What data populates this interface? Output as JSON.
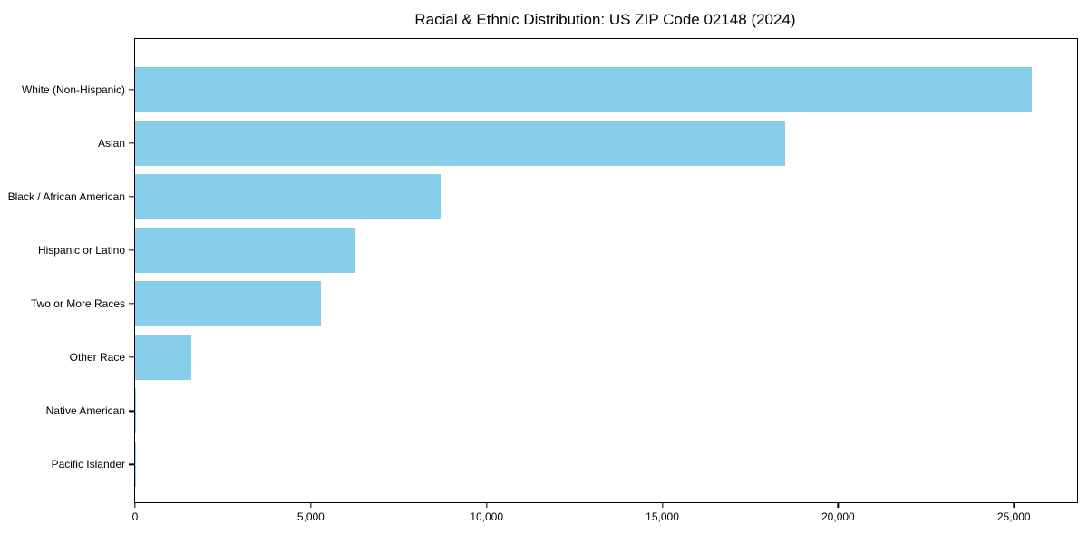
{
  "chart_data": {
    "type": "bar",
    "orientation": "horizontal",
    "title": "Racial & Ethnic Distribution: US ZIP Code 02148 (2024)",
    "categories": [
      "White (Non-Hispanic)",
      "Asian",
      "Black / African American",
      "Hispanic or Latino",
      "Two or More Races",
      "Other Race",
      "Native American",
      "Pacific Islander"
    ],
    "values": [
      25500,
      18500,
      8700,
      6250,
      5300,
      1600,
      30,
      10
    ],
    "xlabel": "",
    "ylabel": "",
    "xlim": [
      0,
      26800
    ],
    "x_ticks": [
      0,
      5000,
      10000,
      15000,
      20000,
      25000
    ],
    "x_tick_labels": [
      "0",
      "5,000",
      "10,000",
      "15,000",
      "20,000",
      "25,000"
    ],
    "bar_color": "#87CEEB",
    "axis_color": "#000000",
    "background": "#FFFFFF",
    "grid": false,
    "legend": null
  }
}
